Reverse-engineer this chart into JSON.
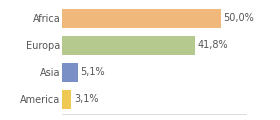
{
  "categories": [
    "America",
    "Asia",
    "Europa",
    "Africa"
  ],
  "values": [
    3.1,
    5.1,
    41.8,
    50.0
  ],
  "bar_colors": [
    "#f0c955",
    "#7b8fc7",
    "#b5c98e",
    "#f0b87a"
  ],
  "labels": [
    "3,1%",
    "5,1%",
    "41,8%",
    "50,0%"
  ],
  "xlim": [
    0,
    58
  ],
  "background_color": "#ffffff",
  "label_fontsize": 7,
  "tick_fontsize": 7,
  "bar_height": 0.72
}
